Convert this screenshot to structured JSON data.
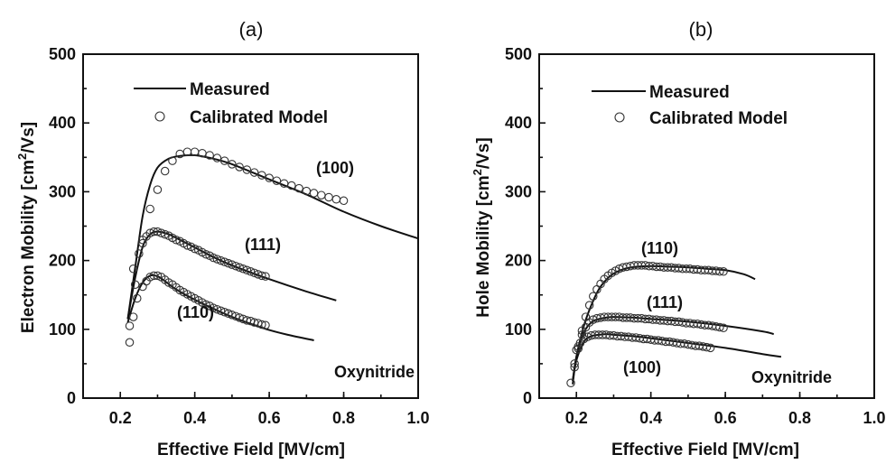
{
  "chart_data": [
    {
      "type": "line",
      "title": "(a)",
      "xlabel": "Effective Field [MV/cm]",
      "ylabel": "Electron Mobility [cm²/Vs]",
      "ylabel_main": "Electron Mobility [cm",
      "ylabel_sup": "2",
      "ylabel_end": "/Vs]",
      "xlim": [
        0.1,
        1.0
      ],
      "ylim": [
        0,
        500
      ],
      "xticks": [
        "0.2",
        "0.4",
        "0.6",
        "0.8",
        "1.0"
      ],
      "xtick_values": [
        0.2,
        0.4,
        0.6,
        0.8,
        1.0
      ],
      "yticks": [
        "0",
        "100",
        "200",
        "300",
        "400",
        "500"
      ],
      "ytick_values": [
        0,
        100,
        200,
        300,
        400,
        500
      ],
      "legend": {
        "placement": "top-left",
        "line_label": "Measured",
        "marker_label": "Calibrated Model"
      },
      "annotations": [
        {
          "text": "(100)",
          "x": 0.71,
          "y": 335
        },
        {
          "text": "(111)",
          "x": 0.51,
          "y": 225
        },
        {
          "text": "(110)",
          "x": 0.36,
          "y": 125
        },
        {
          "text": "Oxynitride",
          "x": 0.83,
          "y": 38
        }
      ],
      "series": [
        {
          "label": "(100)",
          "kind": "measured",
          "x": [
            0.22,
            0.24,
            0.26,
            0.28,
            0.3,
            0.33,
            0.36,
            0.4,
            0.45,
            0.5,
            0.6,
            0.7,
            0.8,
            0.9,
            1.0
          ],
          "y": [
            115,
            190,
            265,
            310,
            335,
            348,
            352,
            353,
            348,
            340,
            318,
            296,
            271,
            250,
            232
          ]
        },
        {
          "label": "(100)",
          "kind": "model",
          "x": [
            0.225,
            0.24,
            0.26,
            0.28,
            0.3,
            0.32,
            0.34,
            0.36,
            0.38,
            0.4,
            0.42,
            0.44,
            0.46,
            0.48,
            0.5,
            0.52,
            0.54,
            0.56,
            0.58,
            0.6,
            0.62,
            0.64,
            0.66,
            0.68,
            0.7,
            0.72,
            0.74,
            0.76,
            0.78,
            0.8
          ],
          "y": [
            105,
            165,
            230,
            275,
            303,
            330,
            345,
            355,
            358,
            358,
            356,
            353,
            349,
            345,
            340,
            336,
            332,
            328,
            324,
            320,
            316,
            312,
            309,
            305,
            301,
            298,
            295,
            292,
            289,
            287
          ]
        },
        {
          "label": "(111)",
          "kind": "measured",
          "x": [
            0.22,
            0.24,
            0.26,
            0.28,
            0.3,
            0.33,
            0.36,
            0.4,
            0.45,
            0.5,
            0.6,
            0.7,
            0.78
          ],
          "y": [
            115,
            175,
            220,
            238,
            242,
            238,
            230,
            219,
            205,
            193,
            173,
            155,
            142
          ]
        },
        {
          "label": "(111)",
          "kind": "model",
          "x": [
            0.235,
            0.25,
            0.26,
            0.27,
            0.28,
            0.29,
            0.3,
            0.31,
            0.32,
            0.33,
            0.34,
            0.35,
            0.36,
            0.37,
            0.38,
            0.39,
            0.4,
            0.41,
            0.42,
            0.43,
            0.44,
            0.45,
            0.46,
            0.47,
            0.48,
            0.49,
            0.5,
            0.51,
            0.52,
            0.53,
            0.54,
            0.55,
            0.56,
            0.57,
            0.58,
            0.59
          ],
          "y": [
            188,
            210,
            225,
            235,
            240,
            242,
            242,
            240,
            238,
            236,
            233,
            230,
            228,
            225,
            222,
            220,
            217,
            215,
            212,
            209,
            207,
            204,
            202,
            200,
            198,
            196,
            194,
            192,
            190,
            188,
            186,
            184,
            182,
            180,
            178,
            177
          ]
        },
        {
          "label": "(110)",
          "kind": "measured",
          "x": [
            0.22,
            0.24,
            0.26,
            0.28,
            0.3,
            0.32,
            0.35,
            0.4,
            0.45,
            0.5,
            0.55,
            0.6,
            0.65,
            0.72
          ],
          "y": [
            110,
            145,
            168,
            178,
            177,
            170,
            158,
            143,
            130,
            118,
            108,
            99,
            92,
            84
          ]
        },
        {
          "label": "(110)",
          "kind": "model",
          "x": [
            0.225,
            0.235,
            0.245,
            0.26,
            0.27,
            0.28,
            0.29,
            0.3,
            0.31,
            0.32,
            0.33,
            0.34,
            0.35,
            0.36,
            0.37,
            0.38,
            0.39,
            0.4,
            0.41,
            0.42,
            0.43,
            0.44,
            0.45,
            0.46,
            0.47,
            0.48,
            0.49,
            0.5,
            0.51,
            0.52,
            0.53,
            0.54,
            0.55,
            0.56,
            0.57,
            0.58,
            0.59
          ],
          "y": [
            81,
            118,
            145,
            162,
            170,
            176,
            178,
            178,
            176,
            172,
            168,
            165,
            161,
            157,
            154,
            151,
            148,
            145,
            142,
            139,
            136,
            134,
            131,
            129,
            127,
            125,
            123,
            121,
            119,
            117,
            115,
            113,
            112,
            110,
            109,
            107,
            106
          ]
        }
      ]
    },
    {
      "type": "line",
      "title": "(b)",
      "xlabel": "Effective Field [MV/cm]",
      "ylabel": "Hole Mobility [cm²/Vs]",
      "ylabel_main": "Hole Mobility [cm",
      "ylabel_sup": "2",
      "ylabel_end": "/Vs]",
      "xlim": [
        0.1,
        1.0
      ],
      "ylim": [
        0,
        500
      ],
      "xticks": [
        "0.2",
        "0.4",
        "0.6",
        "0.8",
        "1.0"
      ],
      "xtick_values": [
        0.2,
        0.4,
        0.6,
        0.8,
        1.0
      ],
      "yticks": [
        "0",
        "100",
        "200",
        "300",
        "400",
        "500"
      ],
      "ytick_values": [
        0,
        100,
        200,
        300,
        400,
        500
      ],
      "legend": {
        "placement": "top-left",
        "line_label": "Measured",
        "marker_label": "Calibrated Model"
      },
      "annotations": [
        {
          "text": "(110)",
          "x": 0.41,
          "y": 215
        },
        {
          "text": "(111)",
          "x": 0.43,
          "y": 133
        },
        {
          "text": "(100)",
          "x": 0.41,
          "y": 45
        },
        {
          "text": "Oxynitride",
          "x": 0.83,
          "y": 30
        }
      ],
      "series": [
        {
          "label": "(110)",
          "kind": "measured",
          "x": [
            0.19,
            0.2,
            0.22,
            0.24,
            0.26,
            0.28,
            0.3,
            0.33,
            0.36,
            0.4,
            0.45,
            0.5,
            0.55,
            0.6,
            0.65,
            0.68
          ],
          "y": [
            20,
            60,
            105,
            135,
            158,
            172,
            181,
            188,
            191,
            192,
            191,
            190,
            188,
            186,
            180,
            173
          ]
        },
        {
          "label": "(110)",
          "kind": "model",
          "x": [
            0.185,
            0.195,
            0.205,
            0.215,
            0.225,
            0.235,
            0.245,
            0.255,
            0.265,
            0.275,
            0.285,
            0.295,
            0.305,
            0.315,
            0.325,
            0.335,
            0.345,
            0.355,
            0.365,
            0.375,
            0.385,
            0.395,
            0.405,
            0.415,
            0.425,
            0.435,
            0.445,
            0.455,
            0.465,
            0.475,
            0.485,
            0.495,
            0.505,
            0.515,
            0.525,
            0.535,
            0.545,
            0.555,
            0.565,
            0.575,
            0.585,
            0.595
          ],
          "y": [
            22,
            45,
            72,
            98,
            118,
            135,
            148,
            158,
            166,
            173,
            178,
            182,
            185,
            188,
            190,
            191,
            192,
            193,
            193,
            193,
            193,
            192,
            192,
            191,
            191,
            190,
            190,
            190,
            189,
            189,
            188,
            188,
            188,
            187,
            187,
            186,
            186,
            186,
            185,
            185,
            184,
            184
          ]
        },
        {
          "label": "(111)",
          "kind": "measured",
          "x": [
            0.19,
            0.2,
            0.22,
            0.24,
            0.26,
            0.28,
            0.3,
            0.35,
            0.4,
            0.5,
            0.6,
            0.7,
            0.73
          ],
          "y": [
            25,
            60,
            95,
            110,
            115,
            117,
            118,
            117,
            115,
            111,
            105,
            97,
            93
          ]
        },
        {
          "label": "(111)",
          "kind": "model",
          "x": [
            0.195,
            0.205,
            0.215,
            0.225,
            0.235,
            0.245,
            0.255,
            0.265,
            0.275,
            0.285,
            0.295,
            0.305,
            0.315,
            0.325,
            0.335,
            0.345,
            0.355,
            0.365,
            0.375,
            0.385,
            0.395,
            0.405,
            0.415,
            0.425,
            0.435,
            0.445,
            0.455,
            0.465,
            0.475,
            0.485,
            0.495,
            0.505,
            0.515,
            0.525,
            0.535,
            0.545,
            0.555,
            0.565,
            0.575,
            0.585,
            0.595
          ],
          "y": [
            50,
            75,
            92,
            103,
            110,
            114,
            116,
            117,
            118,
            118,
            118,
            118,
            118,
            117,
            117,
            117,
            116,
            116,
            116,
            115,
            115,
            114,
            114,
            113,
            113,
            112,
            112,
            111,
            111,
            110,
            109,
            109,
            108,
            108,
            107,
            106,
            106,
            105,
            104,
            103,
            102
          ]
        },
        {
          "label": "(100)",
          "kind": "measured",
          "x": [
            0.19,
            0.2,
            0.22,
            0.24,
            0.26,
            0.28,
            0.3,
            0.35,
            0.4,
            0.5,
            0.6,
            0.7,
            0.75
          ],
          "y": [
            25,
            55,
            82,
            90,
            92,
            93,
            92,
            90,
            87,
            80,
            73,
            64,
            60
          ]
        },
        {
          "label": "(100)",
          "kind": "model",
          "x": [
            0.2,
            0.21,
            0.22,
            0.23,
            0.24,
            0.25,
            0.26,
            0.27,
            0.28,
            0.29,
            0.3,
            0.31,
            0.32,
            0.33,
            0.34,
            0.35,
            0.36,
            0.37,
            0.38,
            0.39,
            0.4,
            0.41,
            0.42,
            0.43,
            0.44,
            0.45,
            0.46,
            0.47,
            0.48,
            0.49,
            0.5,
            0.51,
            0.52,
            0.53,
            0.54,
            0.55,
            0.56
          ],
          "y": [
            70,
            80,
            86,
            89,
            91,
            92,
            92,
            92,
            92,
            91,
            91,
            90,
            90,
            89,
            89,
            88,
            88,
            87,
            86,
            86,
            85,
            84,
            84,
            83,
            82,
            82,
            81,
            80,
            79,
            79,
            78,
            77,
            76,
            76,
            75,
            74,
            73
          ]
        }
      ]
    }
  ]
}
